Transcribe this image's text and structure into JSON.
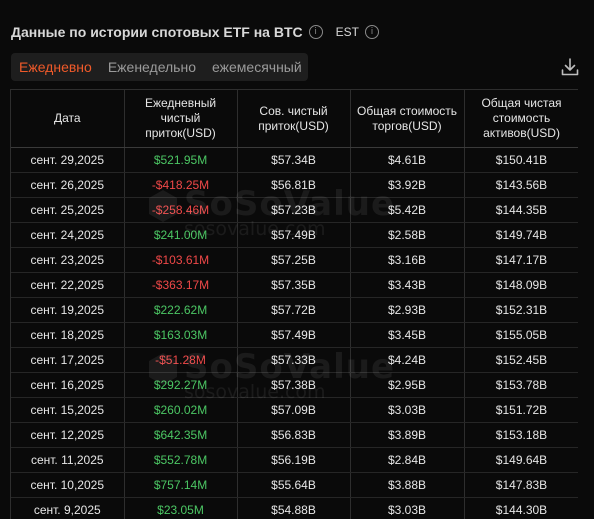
{
  "header": {
    "title": "Данные по истории спотовых ETF на BTC",
    "timezone": "EST"
  },
  "tabs": [
    {
      "label": "Ежедневно",
      "active": true
    },
    {
      "label": "Еженедельно",
      "active": false
    },
    {
      "label": "ежемесячный",
      "active": false
    }
  ],
  "watermark": {
    "brand": "SoSoValue",
    "site": "sosovalue.com"
  },
  "table": {
    "columns": [
      "Дата",
      "Ежедневный чистый приток(USD)",
      "Сов. чистый приток(USD)",
      "Общая стоимость торгов(USD)",
      "Общая чистая стоимость активов(USD)"
    ],
    "rows": [
      {
        "date": "сент. 29,2025",
        "daily": "$521.95M",
        "cum": "$57.34B",
        "traded": "$4.61B",
        "assets": "$150.41B",
        "sign": "pos"
      },
      {
        "date": "сент. 26,2025",
        "daily": "-$418.25M",
        "cum": "$56.81B",
        "traded": "$3.92B",
        "assets": "$143.56B",
        "sign": "neg"
      },
      {
        "date": "сент. 25,2025",
        "daily": "-$258.46M",
        "cum": "$57.23B",
        "traded": "$5.42B",
        "assets": "$144.35B",
        "sign": "neg"
      },
      {
        "date": "сент. 24,2025",
        "daily": "$241.00M",
        "cum": "$57.49B",
        "traded": "$2.58B",
        "assets": "$149.74B",
        "sign": "pos"
      },
      {
        "date": "сент. 23,2025",
        "daily": "-$103.61M",
        "cum": "$57.25B",
        "traded": "$3.16B",
        "assets": "$147.17B",
        "sign": "neg"
      },
      {
        "date": "сент. 22,2025",
        "daily": "-$363.17M",
        "cum": "$57.35B",
        "traded": "$3.43B",
        "assets": "$148.09B",
        "sign": "neg"
      },
      {
        "date": "сент. 19,2025",
        "daily": "$222.62M",
        "cum": "$57.72B",
        "traded": "$2.93B",
        "assets": "$152.31B",
        "sign": "pos"
      },
      {
        "date": "сент. 18,2025",
        "daily": "$163.03M",
        "cum": "$57.49B",
        "traded": "$3.45B",
        "assets": "$155.05B",
        "sign": "pos"
      },
      {
        "date": "сент. 17,2025",
        "daily": "-$51.28M",
        "cum": "$57.33B",
        "traded": "$4.24B",
        "assets": "$152.45B",
        "sign": "neg"
      },
      {
        "date": "сент. 16,2025",
        "daily": "$292.27M",
        "cum": "$57.38B",
        "traded": "$2.95B",
        "assets": "$153.78B",
        "sign": "pos"
      },
      {
        "date": "сент. 15,2025",
        "daily": "$260.02M",
        "cum": "$57.09B",
        "traded": "$3.03B",
        "assets": "$151.72B",
        "sign": "pos"
      },
      {
        "date": "сент. 12,2025",
        "daily": "$642.35M",
        "cum": "$56.83B",
        "traded": "$3.89B",
        "assets": "$153.18B",
        "sign": "pos"
      },
      {
        "date": "сент. 11,2025",
        "daily": "$552.78M",
        "cum": "$56.19B",
        "traded": "$2.84B",
        "assets": "$149.64B",
        "sign": "pos"
      },
      {
        "date": "сент. 10,2025",
        "daily": "$757.14M",
        "cum": "$55.64B",
        "traded": "$3.88B",
        "assets": "$147.83B",
        "sign": "pos"
      },
      {
        "date": "сент. 9,2025",
        "daily": "$23.05M",
        "cum": "$54.88B",
        "traded": "$3.03B",
        "assets": "$144.30B",
        "sign": "pos"
      }
    ]
  },
  "colors": {
    "accent": "#f05a2a",
    "positive": "#4cc764",
    "negative": "#f04848"
  }
}
